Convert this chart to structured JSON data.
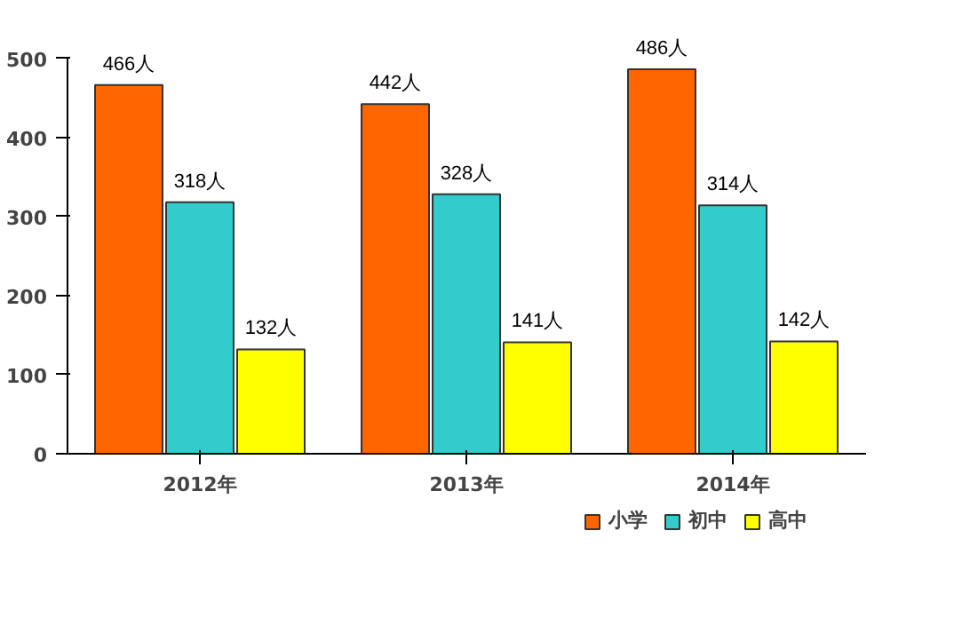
{
  "chart_data": {
    "type": "bar",
    "categories": [
      "2012年",
      "2013年",
      "2014年"
    ],
    "series": [
      {
        "name": "小学",
        "color": "#ff6600",
        "values": [
          466,
          442,
          486
        ],
        "value_labels": [
          "466人",
          "442人",
          "486人"
        ]
      },
      {
        "name": "初中",
        "color": "#33cccc",
        "values": [
          318,
          328,
          314
        ],
        "value_labels": [
          "318人",
          "328人",
          "314人"
        ]
      },
      {
        "name": "高中",
        "color": "#ffff00",
        "values": [
          132,
          141,
          142
        ],
        "value_labels": [
          "132人",
          "141人",
          "142人"
        ]
      }
    ],
    "ylim": [
      0,
      500
    ],
    "yticks": [
      0,
      100,
      200,
      300,
      400,
      500
    ],
    "grid": false,
    "legend": "bottom right"
  }
}
